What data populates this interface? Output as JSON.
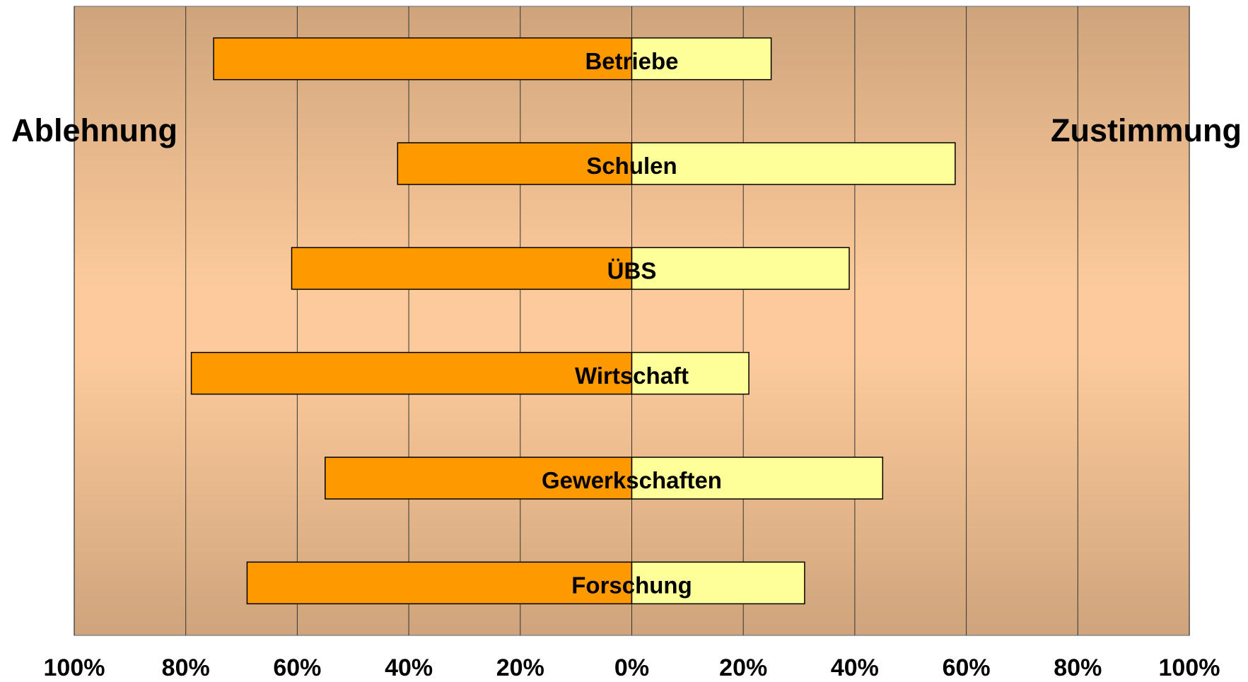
{
  "chart_data": {
    "type": "diverging-bar",
    "categories": [
      "Betriebe",
      "Schulen",
      "ÜBS",
      "Wirtschaft",
      "Gewerkschaften",
      "Forschung"
    ],
    "series": [
      {
        "name": "Ablehnung",
        "color": "#ff9900",
        "values": [
          -75,
          -42,
          -61,
          -79,
          -55,
          -69
        ]
      },
      {
        "name": "Zustimmung",
        "color": "#ffff99",
        "values": [
          25,
          58,
          39,
          21,
          45,
          31
        ]
      }
    ],
    "xlim": [
      -100,
      100
    ],
    "xticks": [
      {
        "value": -100,
        "label": "100%"
      },
      {
        "value": -80,
        "label": "80%"
      },
      {
        "value": -60,
        "label": "60%"
      },
      {
        "value": -40,
        "label": "40%"
      },
      {
        "value": -20,
        "label": "20%"
      },
      {
        "value": 0,
        "label": "0%"
      },
      {
        "value": 20,
        "label": "20%"
      },
      {
        "value": 40,
        "label": "40%"
      },
      {
        "value": 60,
        "label": "60%"
      },
      {
        "value": 80,
        "label": "80%"
      },
      {
        "value": 100,
        "label": "100%"
      }
    ],
    "grid": true
  }
}
